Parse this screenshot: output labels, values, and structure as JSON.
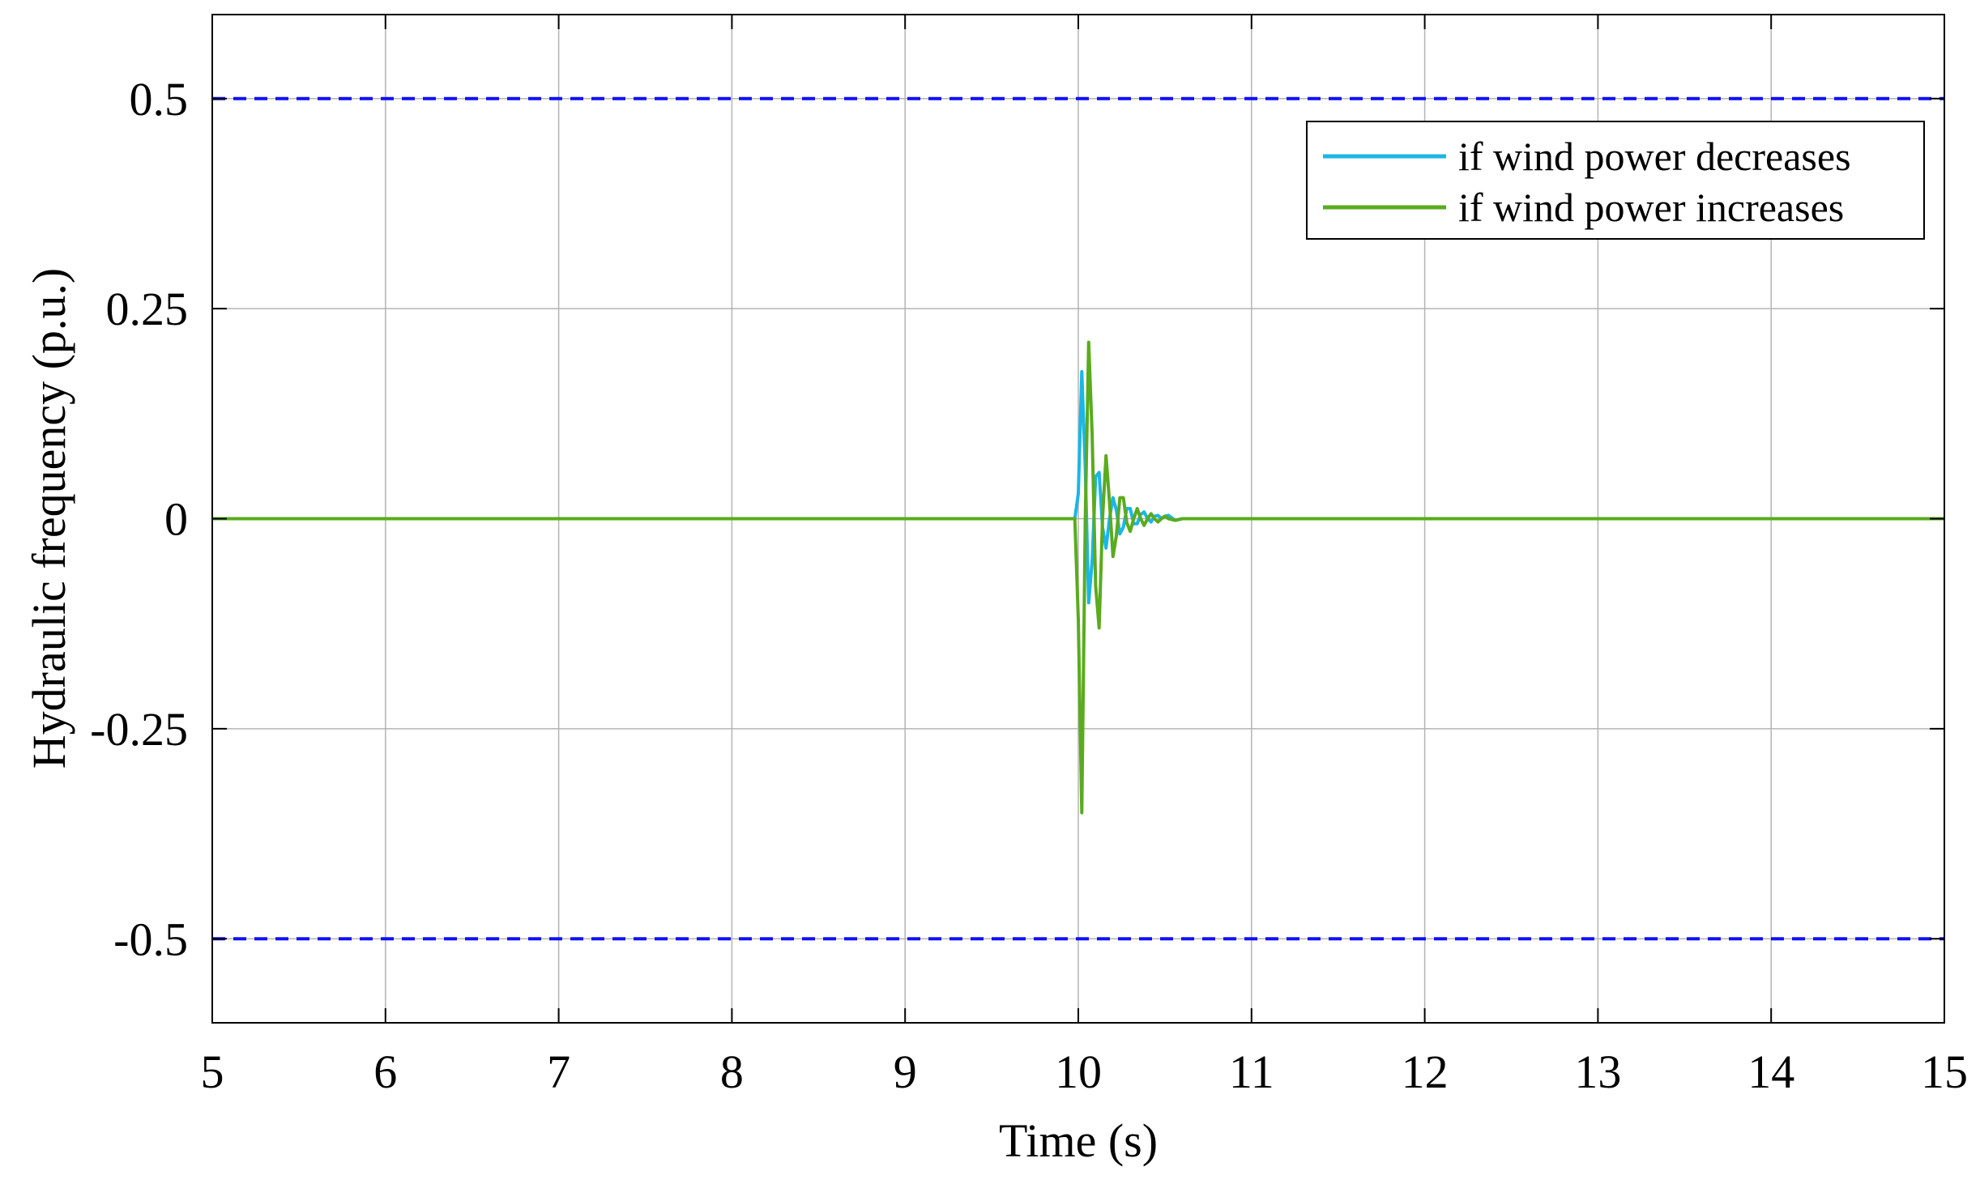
{
  "chart_data": {
    "type": "line",
    "title": "",
    "xlabel": "Time (s)",
    "ylabel": "Hydraulic frequency (p.u.)",
    "xlim": [
      5,
      15
    ],
    "ylim": [
      -0.6,
      0.6
    ],
    "x_ticks": [
      5,
      6,
      7,
      8,
      9,
      10,
      11,
      12,
      13,
      14,
      15
    ],
    "y_ticks": [
      -0.5,
      -0.25,
      0,
      0.25,
      0.5
    ],
    "x_tick_labels": [
      "5",
      "6",
      "7",
      "8",
      "9",
      "10",
      "11",
      "12",
      "13",
      "14",
      "15"
    ],
    "y_tick_labels": [
      "-0.5",
      "-0.25",
      "0",
      "0.25",
      "0.5"
    ],
    "grid": true,
    "legend_position": "top-right",
    "limits": [
      {
        "value": 0.5,
        "style": "dashed",
        "color": "#1010ff"
      },
      {
        "value": -0.5,
        "style": "dashed",
        "color": "#1010ff"
      }
    ],
    "series": [
      {
        "name": "if wind power decreases",
        "color": "#1ab6e6",
        "x": [
          5,
          9.98,
          10.0,
          10.02,
          10.04,
          10.06,
          10.08,
          10.1,
          10.12,
          10.14,
          10.16,
          10.18,
          10.2,
          10.22,
          10.24,
          10.26,
          10.28,
          10.3,
          10.32,
          10.34,
          10.36,
          10.38,
          10.4,
          10.42,
          10.44,
          10.46,
          10.48,
          10.5,
          10.52,
          10.56,
          10.6,
          10.7,
          15
        ],
        "y": [
          0,
          0,
          0.03,
          0.175,
          0.06,
          -0.1,
          -0.05,
          0.05,
          0.055,
          -0.01,
          -0.035,
          0.0,
          0.025,
          0.01,
          -0.018,
          -0.01,
          0.012,
          0.012,
          -0.006,
          -0.006,
          0.005,
          0.008,
          0.0,
          -0.004,
          0.003,
          0.004,
          0.0,
          0.003,
          0.004,
          -0.002,
          0.0,
          0.0,
          0
        ]
      },
      {
        "name": "if wind power increases",
        "color": "#5aab1e",
        "x": [
          5,
          9.98,
          10.0,
          10.02,
          10.04,
          10.06,
          10.08,
          10.1,
          10.12,
          10.14,
          10.16,
          10.18,
          10.2,
          10.22,
          10.24,
          10.26,
          10.28,
          10.3,
          10.32,
          10.34,
          10.36,
          10.38,
          10.4,
          10.42,
          10.44,
          10.46,
          10.48,
          10.5,
          10.52,
          10.56,
          10.6,
          10.7,
          15
        ],
        "y": [
          0,
          0,
          -0.12,
          -0.35,
          0.0,
          0.21,
          0.1,
          -0.08,
          -0.13,
          0.0,
          0.075,
          0.02,
          -0.045,
          -0.02,
          0.025,
          0.025,
          -0.005,
          -0.015,
          0.0,
          0.012,
          0.0,
          -0.008,
          0.0,
          0.006,
          0.0,
          -0.004,
          0.0,
          0.003,
          0.0,
          -0.002,
          0.0,
          0.0,
          0
        ]
      }
    ]
  }
}
